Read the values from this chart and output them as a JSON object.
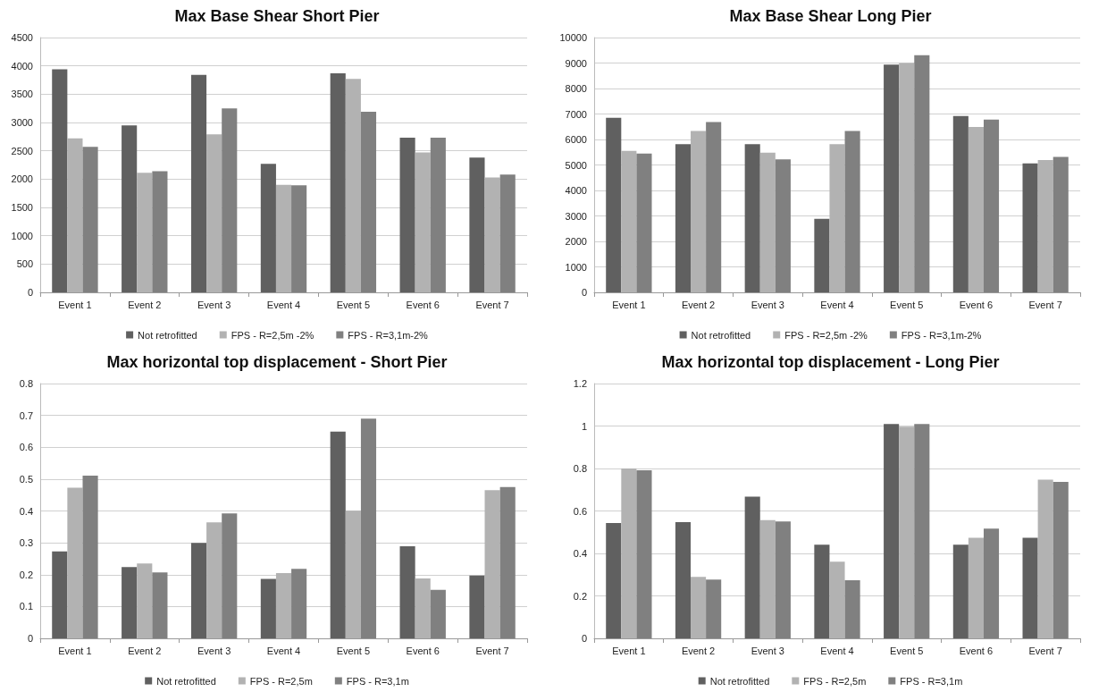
{
  "chart_data": [
    {
      "type": "bar",
      "title": "Max Base Shear Short Pier",
      "categories": [
        "Event 1",
        "Event 2",
        "Event 3",
        "Event 4",
        "Event 5",
        "Event 6",
        "Event 7"
      ],
      "series": [
        {
          "name": "Not retrofitted",
          "color": "#606060",
          "values": [
            3940,
            2950,
            3840,
            2270,
            3870,
            2730,
            2380
          ]
        },
        {
          "name": "FPS - R=2,5m -2%",
          "color": "#b2b2b2",
          "values": [
            2720,
            2110,
            2790,
            1900,
            3770,
            2470,
            2030
          ]
        },
        {
          "name": "FPS - R=3,1m-2%",
          "color": "#808080",
          "values": [
            2570,
            2140,
            3250,
            1890,
            3190,
            2730,
            2080
          ]
        }
      ],
      "ylim": [
        0,
        4500
      ],
      "yticks": [
        0,
        500,
        1000,
        1500,
        2000,
        2500,
        3000,
        3500,
        4000,
        4500
      ],
      "grid": "y",
      "legend": "bottom"
    },
    {
      "type": "bar",
      "title": "Max Base Shear Long Pier",
      "categories": [
        "Event 1",
        "Event 2",
        "Event 3",
        "Event 4",
        "Event 5",
        "Event 6",
        "Event 7"
      ],
      "series": [
        {
          "name": "Not retrofitted",
          "color": "#606060",
          "values": [
            6850,
            5820,
            5820,
            2890,
            8940,
            6920,
            5060
          ]
        },
        {
          "name": "FPS - R=2,5m -2%",
          "color": "#b2b2b2",
          "values": [
            5550,
            6330,
            5480,
            5820,
            9000,
            6490,
            5190
          ]
        },
        {
          "name": "FPS - R=3,1m-2%",
          "color": "#808080",
          "values": [
            5450,
            6680,
            5220,
            6330,
            9310,
            6780,
            5320
          ]
        }
      ],
      "ylim": [
        0,
        10000
      ],
      "yticks": [
        0,
        1000,
        2000,
        3000,
        4000,
        5000,
        6000,
        7000,
        8000,
        9000,
        10000
      ],
      "grid": "y",
      "legend": "bottom"
    },
    {
      "type": "bar",
      "title": "Max horizontal top displacement - Short Pier",
      "categories": [
        "Event 1",
        "Event 2",
        "Event 3",
        "Event 4",
        "Event 5",
        "Event 6",
        "Event 7"
      ],
      "series": [
        {
          "name": "Not retrofitted",
          "color": "#606060",
          "values": [
            0.273,
            0.224,
            0.3,
            0.187,
            0.649,
            0.289,
            0.197
          ]
        },
        {
          "name": "FPS - R=2,5m",
          "color": "#b2b2b2",
          "values": [
            0.473,
            0.235,
            0.364,
            0.205,
            0.401,
            0.188,
            0.465
          ]
        },
        {
          "name": "FPS - R=3,1m",
          "color": "#808080",
          "values": [
            0.511,
            0.207,
            0.392,
            0.218,
            0.69,
            0.152,
            0.475
          ]
        }
      ],
      "ylim": [
        0,
        0.8
      ],
      "yticks": [
        0,
        0.1,
        0.2,
        0.3,
        0.4,
        0.5,
        0.6,
        0.7,
        0.8
      ],
      "grid": "y",
      "legend": "bottom"
    },
    {
      "type": "bar",
      "title": "Max horizontal top displacement - Long Pier",
      "categories": [
        "Event 1",
        "Event 2",
        "Event 3",
        "Event 4",
        "Event 5",
        "Event 6",
        "Event 7"
      ],
      "series": [
        {
          "name": "Not retrofitted",
          "color": "#606060",
          "values": [
            0.543,
            0.547,
            0.667,
            0.441,
            1.01,
            0.441,
            0.474
          ]
        },
        {
          "name": "FPS - R=2,5m",
          "color": "#b2b2b2",
          "values": [
            0.8,
            0.29,
            0.557,
            0.361,
            0.997,
            0.474,
            0.747
          ]
        },
        {
          "name": "FPS - R=3,1m",
          "color": "#808080",
          "values": [
            0.792,
            0.277,
            0.551,
            0.274,
            1.01,
            0.517,
            0.737
          ]
        }
      ],
      "ylim": [
        0,
        1.2
      ],
      "yticks": [
        0,
        0.2,
        0.4,
        0.6,
        0.8,
        1,
        1.2
      ],
      "grid": "y",
      "legend": "bottom"
    }
  ]
}
